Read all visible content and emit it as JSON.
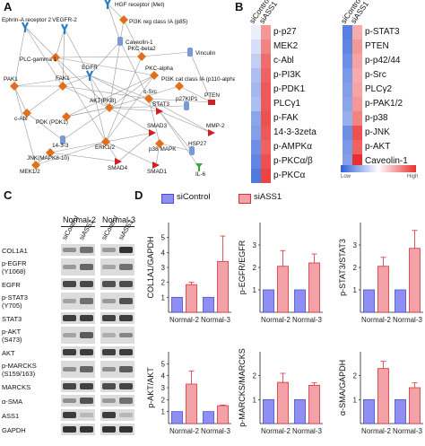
{
  "panels": {
    "a": "A",
    "b": "B",
    "c": "C",
    "d": "D"
  },
  "network": {
    "nodes": [
      {
        "id": "ephrin",
        "label": "Ephrin-A receptor 2",
        "shape": "receptor",
        "color": "#2a7fc2"
      },
      {
        "id": "vegfr2",
        "label": "VEGFR-2",
        "shape": "receptor",
        "color": "#2a7fc2"
      },
      {
        "id": "hgf",
        "label": "HGF receptor (Met)",
        "shape": "receptor",
        "color": "#2a7fc2"
      },
      {
        "id": "pi3kreg",
        "label": "PI3K reg class IA (p85)",
        "shape": "kinase",
        "color": "#e0701e"
      },
      {
        "id": "caveolin",
        "label": "Caveolin-1",
        "shape": "other",
        "color": "#7a9ad6"
      },
      {
        "id": "plcg1",
        "label": "PLC-gamma 1",
        "shape": "kinase",
        "color": "#e0701e"
      },
      {
        "id": "pkcbeta2",
        "label": "PKC-beta2",
        "shape": "kinase",
        "color": "#e0701e"
      },
      {
        "id": "vinculin",
        "label": "Vinculin",
        "shape": "other",
        "color": "#7a9ad6"
      },
      {
        "id": "egfr",
        "label": "EGFR",
        "shape": "receptor",
        "color": "#2a7fc2"
      },
      {
        "id": "pkcalpha",
        "label": "PKC-alpha",
        "shape": "kinase",
        "color": "#e0701e"
      },
      {
        "id": "pi3kcat",
        "label": "PI3K cat class IA (p110-alpha)",
        "shape": "kinase",
        "color": "#e0701e"
      },
      {
        "id": "pak1",
        "label": "PAK1",
        "shape": "kinase",
        "color": "#e0701e"
      },
      {
        "id": "fak1",
        "label": "FAK1",
        "shape": "kinase",
        "color": "#e0701e"
      },
      {
        "id": "akt",
        "label": "AKT(PKB)",
        "shape": "kinase",
        "color": "#e0701e"
      },
      {
        "id": "csrc",
        "label": "c-Src",
        "shape": "kinase",
        "color": "#e0701e"
      },
      {
        "id": "pten",
        "label": "PTEN",
        "shape": "phosphatase",
        "color": "#cc2222"
      },
      {
        "id": "cabl",
        "label": "c-Abl",
        "shape": "kinase",
        "color": "#e0701e"
      },
      {
        "id": "pdk1",
        "label": "PDK (PDK1)",
        "shape": "kinase",
        "color": "#e0701e"
      },
      {
        "id": "stat3",
        "label": "STAT3",
        "shape": "tf",
        "color": "#cc2222"
      },
      {
        "id": "p27",
        "label": "p27KIP1",
        "shape": "other",
        "color": "#7a9ad6"
      },
      {
        "id": "p1433",
        "label": "14-3-3",
        "shape": "other",
        "color": "#7a9ad6"
      },
      {
        "id": "erk12",
        "label": "ERK1/2",
        "shape": "kinase",
        "color": "#e0701e"
      },
      {
        "id": "smad3",
        "label": "SMAD3",
        "shape": "tf",
        "color": "#cc2222"
      },
      {
        "id": "p38",
        "label": "p38 MAPK",
        "shape": "kinase",
        "color": "#e0701e"
      },
      {
        "id": "mmp2",
        "label": "MMP-2",
        "shape": "tf",
        "color": "#cc2222"
      },
      {
        "id": "jnk",
        "label": "JNK(MAPK8-10)",
        "shape": "kinase",
        "color": "#e0701e"
      },
      {
        "id": "hsp27",
        "label": "HSP27",
        "shape": "other",
        "color": "#7a9ad6"
      },
      {
        "id": "mek12",
        "label": "MEK1/2",
        "shape": "kinase",
        "color": "#e0701e"
      },
      {
        "id": "smad4",
        "label": "SMAD4",
        "shape": "tf",
        "color": "#cc2222"
      },
      {
        "id": "smad1",
        "label": "SMAD1",
        "shape": "tf",
        "color": "#cc2222"
      },
      {
        "id": "il6",
        "label": "IL-6",
        "shape": "ligand",
        "color": "#3aa83a"
      }
    ]
  },
  "heatmap": {
    "col_labels": [
      "siControl",
      "siASS1"
    ],
    "left": {
      "rows": [
        {
          "label": "p-p27",
          "values": [
            0.45,
            0.75
          ]
        },
        {
          "label": "MEK2",
          "values": [
            0.4,
            0.8
          ]
        },
        {
          "label": "c-Abl",
          "values": [
            0.35,
            0.85
          ]
        },
        {
          "label": "p-PI3K",
          "values": [
            0.3,
            0.88
          ]
        },
        {
          "label": "p-PDK1",
          "values": [
            0.28,
            0.9
          ]
        },
        {
          "label": "PLCγ1",
          "values": [
            0.3,
            0.9
          ]
        },
        {
          "label": "p-FAK",
          "values": [
            0.22,
            0.92
          ]
        },
        {
          "label": "14-3-3zeta",
          "values": [
            0.2,
            0.9
          ]
        },
        {
          "label": "p-AMPKα",
          "values": [
            0.15,
            0.88
          ]
        },
        {
          "label": "p-PKCα/β",
          "values": [
            0.12,
            0.92
          ]
        },
        {
          "label": "p-PKCα",
          "values": [
            0.08,
            0.95
          ]
        }
      ]
    },
    "right": {
      "rows": [
        {
          "label": "p-STAT3",
          "values": [
            0.1,
            0.7
          ]
        },
        {
          "label": "PTEN",
          "values": [
            0.12,
            0.75
          ]
        },
        {
          "label": "p-p42/44",
          "values": [
            0.15,
            0.72
          ]
        },
        {
          "label": "p-Src",
          "values": [
            0.18,
            0.7
          ]
        },
        {
          "label": "PLCγ2",
          "values": [
            0.2,
            0.72
          ]
        },
        {
          "label": "p-PAK1/2",
          "values": [
            0.22,
            0.75
          ]
        },
        {
          "label": "p-p38",
          "values": [
            0.25,
            0.8
          ]
        },
        {
          "label": "p-JNK",
          "values": [
            0.15,
            0.92
          ]
        },
        {
          "label": "p-AKT",
          "values": [
            0.18,
            0.88
          ]
        },
        {
          "label": "Caveolin-1",
          "values": [
            0.2,
            1.0
          ]
        }
      ]
    },
    "scale": {
      "low": "Low",
      "high": "High",
      "low_color": "#2f5fd8",
      "mid_color": "#ffffff",
      "high_color": "#e8302f"
    }
  },
  "western": {
    "groups": [
      "Normal-2",
      "Normal-3"
    ],
    "lanes": [
      "siControl",
      "siASS1",
      "siControl",
      "siASS1"
    ],
    "rows": [
      {
        "label": "COL1A1",
        "intensities": [
          0.4,
          0.55,
          0.35,
          0.85
        ]
      },
      {
        "label": "p-EGFR\n(Y1068)",
        "intensities": [
          0.35,
          0.6,
          0.3,
          0.55
        ]
      },
      {
        "label": "EGFR",
        "intensities": [
          0.75,
          0.75,
          0.7,
          0.72
        ]
      },
      {
        "label": "p-STAT3\n(Y705)",
        "intensities": [
          0.3,
          0.55,
          0.35,
          0.7
        ]
      },
      {
        "label": "STAT3",
        "intensities": [
          0.8,
          0.8,
          0.78,
          0.8
        ]
      },
      {
        "label": "p-AKT\n(S473)",
        "intensities": [
          0.3,
          0.65,
          0.25,
          0.45
        ]
      },
      {
        "label": "AKT",
        "intensities": [
          0.8,
          0.8,
          0.78,
          0.8
        ]
      },
      {
        "label": "p-MARCKS\n(S159/163)",
        "intensities": [
          0.4,
          0.6,
          0.4,
          0.65
        ]
      },
      {
        "label": "MARCKS",
        "intensities": [
          0.75,
          0.78,
          0.72,
          0.76
        ]
      },
      {
        "label": "α-SMA",
        "intensities": [
          0.4,
          0.7,
          0.35,
          0.55
        ]
      },
      {
        "label": "ASS1",
        "intensities": [
          0.8,
          0.2,
          0.8,
          0.2
        ]
      },
      {
        "label": "GAPDH",
        "intensities": [
          0.85,
          0.85,
          0.85,
          0.85
        ]
      }
    ]
  },
  "chart_legend": {
    "control_label": "siControl",
    "ass1_label": "siASS1",
    "control_color": "#8f8ff2",
    "ass1_color": "#f3a3a7",
    "control_edge": "#4b4bd8",
    "ass1_edge": "#d8303a"
  },
  "chart_data": [
    {
      "type": "bar",
      "ylabel": "COL1A1/GAPDH",
      "categories": [
        "Normal-2",
        "Normal-3"
      ],
      "ylim": [
        0,
        6
      ],
      "yticks": [
        1,
        2,
        3,
        4,
        5
      ],
      "series": [
        {
          "name": "siControl",
          "values": [
            1,
            1
          ],
          "errors": [
            0,
            0
          ]
        },
        {
          "name": "siASS1",
          "values": [
            1.85,
            3.4
          ],
          "errors": [
            0.15,
            1.7
          ]
        }
      ]
    },
    {
      "type": "bar",
      "ylabel": "p-EGFR/EGFR",
      "categories": [
        "Normal-2",
        "Normal-3"
      ],
      "ylim": [
        0,
        4
      ],
      "yticks": [
        1,
        2,
        3
      ],
      "series": [
        {
          "name": "siControl",
          "values": [
            1,
            1
          ],
          "errors": [
            0,
            0
          ]
        },
        {
          "name": "siASS1",
          "values": [
            2.05,
            2.2
          ],
          "errors": [
            0.7,
            0.4
          ]
        }
      ]
    },
    {
      "type": "bar",
      "ylabel": "p-STAT3/STAT3",
      "categories": [
        "Normal-2",
        "Normal-3"
      ],
      "ylim": [
        0,
        4
      ],
      "yticks": [
        1,
        2,
        3
      ],
      "series": [
        {
          "name": "siControl",
          "values": [
            1,
            1
          ],
          "errors": [
            0,
            0
          ]
        },
        {
          "name": "siASS1",
          "values": [
            2.05,
            2.85
          ],
          "errors": [
            0.4,
            0.8
          ]
        }
      ]
    },
    {
      "type": "bar",
      "ylabel": "p-AKT/AKT",
      "categories": [
        "Normal-2",
        "Normal-3"
      ],
      "ylim": [
        0,
        6
      ],
      "yticks": [
        1,
        2,
        3,
        4,
        5
      ],
      "series": [
        {
          "name": "siControl",
          "values": [
            1,
            1
          ],
          "errors": [
            0,
            0
          ]
        },
        {
          "name": "siASS1",
          "values": [
            3.3,
            1.5
          ],
          "errors": [
            1.1,
            0.05
          ]
        }
      ]
    },
    {
      "type": "bar",
      "ylabel": "p-MARCKS/MARCKS",
      "categories": [
        "Normal-2",
        "Normal-3"
      ],
      "ylim": [
        0,
        3
      ],
      "yticks": [
        1,
        2
      ],
      "series": [
        {
          "name": "siControl",
          "values": [
            1,
            1
          ],
          "errors": [
            0,
            0
          ]
        },
        {
          "name": "siASS1",
          "values": [
            1.72,
            1.6
          ],
          "errors": [
            0.38,
            0.1
          ]
        }
      ]
    },
    {
      "type": "bar",
      "ylabel": "α-SMA/GAPDH",
      "categories": [
        "Normal-2",
        "Normal-3"
      ],
      "ylim": [
        0,
        3
      ],
      "yticks": [
        1,
        2
      ],
      "series": [
        {
          "name": "siControl",
          "values": [
            1,
            1
          ],
          "errors": [
            0,
            0
          ]
        },
        {
          "name": "siASS1",
          "values": [
            2.3,
            1.5
          ],
          "errors": [
            0.3,
            0.2
          ]
        }
      ]
    }
  ]
}
